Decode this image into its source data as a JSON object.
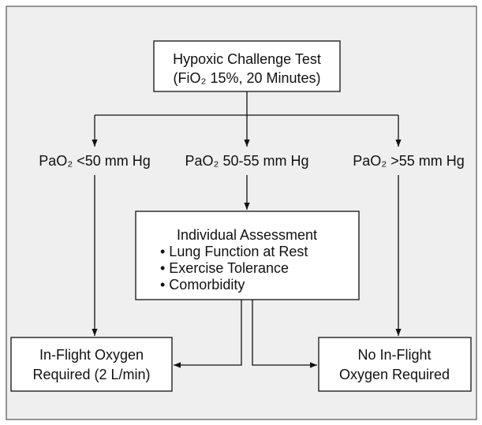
{
  "nodes": [
    {
      "lines": [
        "Hypoxic Challenge Test",
        "(FiO₂ 15%, 20 Minutes)"
      ]
    },
    {
      "lines": [
        "Individual Assessment",
        "• Lung Function at Rest",
        "• Exercise Tolerance",
        "• Comorbidity"
      ]
    },
    {
      "lines": [
        "In-Flight Oxygen",
        "Required (2 L/min)"
      ]
    },
    {
      "lines": [
        "No In-Flight",
        "Oxygen Required"
      ]
    }
  ],
  "branches": [
    "PaO₂ <50 mm Hg",
    "PaO₂ 50-55 mm Hg",
    "PaO₂ >55 mm Hg"
  ]
}
